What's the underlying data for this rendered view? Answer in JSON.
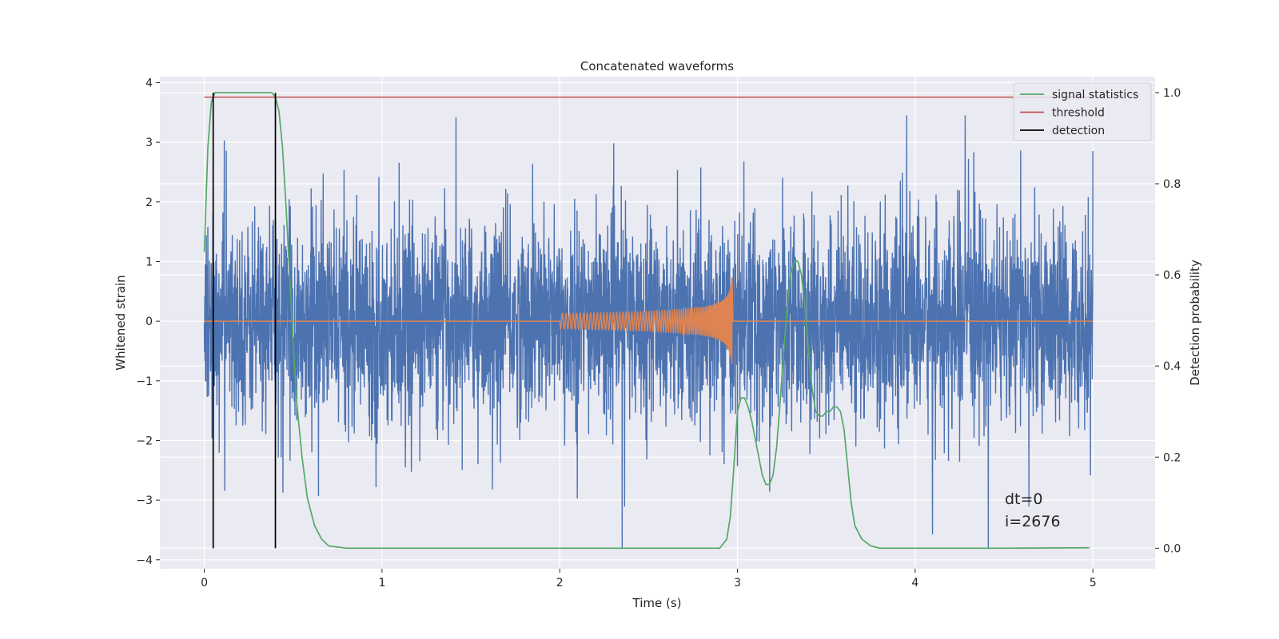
{
  "chart_data": {
    "type": "line",
    "title": "Concatenated waveforms",
    "xlabel": "Time (s)",
    "ylabel_left": "Whitened strain",
    "ylabel_right": "Detection probability",
    "xlim": [
      -0.25,
      5.35
    ],
    "ylim_left": [
      -4.15,
      4.1
    ],
    "ylim_right": [
      -0.045,
      1.035
    ],
    "x_ticks": [
      "0",
      "1",
      "2",
      "3",
      "4",
      "5"
    ],
    "y_left_ticks": [
      "4",
      "3",
      "2",
      "1",
      "0",
      "−1",
      "−2",
      "−3",
      "−4"
    ],
    "y_right_ticks": [
      "1.0",
      "0.8",
      "0.6",
      "0.4",
      "0.2",
      "0.0"
    ],
    "grid": true,
    "legend_position": "top-right",
    "colors": {
      "background": "#eaeaf2",
      "grid": "#ffffff",
      "strain": "#4c72b0",
      "injected_waveform": "#dd8452",
      "signal_statistics": "#55a868",
      "threshold": "#c44e52",
      "detection": "#000000"
    },
    "series": [
      {
        "name": "",
        "role": "whitened strain noise",
        "axis": "left",
        "t_range": [
          0,
          5
        ],
        "amplitude_range": [
          -3.8,
          3.45
        ]
      },
      {
        "name": "",
        "role": "injected chirp waveform",
        "axis": "left",
        "t_range": [
          2.0,
          2.97
        ],
        "amplitude_peak": 0.85
      },
      {
        "name": "signal statistics",
        "axis": "right",
        "x": [
          0,
          0.02,
          0.04,
          0.06,
          0.08,
          0.1,
          0.15,
          0.2,
          0.25,
          0.3,
          0.35,
          0.38,
          0.4,
          0.42,
          0.44,
          0.46,
          0.48,
          0.5,
          0.52,
          0.55,
          0.58,
          0.62,
          0.66,
          0.7,
          0.8,
          1.0,
          2.0,
          2.9,
          2.94,
          2.96,
          2.98,
          3.0,
          3.02,
          3.04,
          3.06,
          3.08,
          3.1,
          3.12,
          3.14,
          3.16,
          3.18,
          3.2,
          3.22,
          3.24,
          3.26,
          3.28,
          3.3,
          3.32,
          3.34,
          3.36,
          3.38,
          3.4,
          3.42,
          3.44,
          3.46,
          3.48,
          3.5,
          3.52,
          3.54,
          3.56,
          3.58,
          3.6,
          3.62,
          3.64,
          3.66,
          3.7,
          3.75,
          3.8,
          4.0,
          4.5,
          4.98
        ],
        "values": [
          0.65,
          0.88,
          0.98,
          1.0,
          1.0,
          1.0,
          1.0,
          1.0,
          1.0,
          1.0,
          1.0,
          1.0,
          0.99,
          0.96,
          0.88,
          0.75,
          0.6,
          0.45,
          0.32,
          0.2,
          0.11,
          0.05,
          0.02,
          0.005,
          0.0,
          0.0,
          0.0,
          0.0,
          0.02,
          0.07,
          0.18,
          0.3,
          0.33,
          0.33,
          0.31,
          0.28,
          0.24,
          0.2,
          0.16,
          0.14,
          0.14,
          0.16,
          0.22,
          0.32,
          0.43,
          0.53,
          0.6,
          0.63,
          0.63,
          0.6,
          0.53,
          0.43,
          0.35,
          0.3,
          0.29,
          0.29,
          0.3,
          0.3,
          0.31,
          0.31,
          0.3,
          0.26,
          0.18,
          0.1,
          0.05,
          0.02,
          0.005,
          0.0,
          0.0,
          0.0,
          0.001
        ]
      },
      {
        "name": "threshold",
        "axis": "right",
        "x": [
          0,
          5
        ],
        "values": [
          0.99,
          0.99
        ]
      },
      {
        "name": "detection",
        "axis": "right",
        "x": [
          0.05,
          0.4
        ],
        "values_range": [
          0.0,
          1.0
        ]
      }
    ],
    "annotations": [
      "dt=0",
      "i=2676"
    ]
  }
}
